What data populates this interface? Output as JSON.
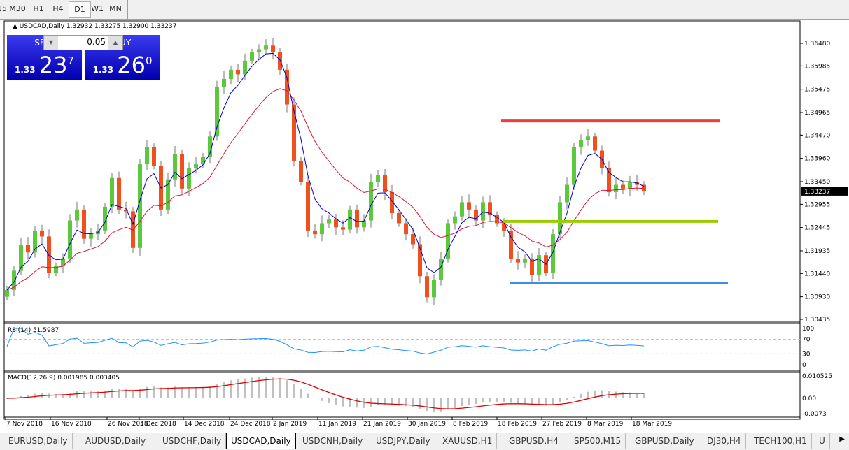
{
  "timeframes": [
    {
      "label": "15"
    },
    {
      "label": "M30"
    },
    {
      "label": "H1"
    },
    {
      "label": "H4"
    },
    {
      "label": "D1",
      "active": true
    },
    {
      "label": "W1"
    },
    {
      "label": "MN"
    }
  ],
  "chart": {
    "title": "USDCAD,Daily  1.32932 1.33275 1.32900 1.33237",
    "current_price": "1.33237"
  },
  "trade_panel": {
    "sell_label": "SELL",
    "buy_label": "BUY",
    "lot": "0.05",
    "sell_prefix": "1.33",
    "sell_big": "23",
    "sell_sup": "7",
    "buy_prefix": "1.33",
    "buy_big": "26",
    "buy_sup": "0"
  },
  "indicators": {
    "rsi_label": "RSI(14) 51.5987",
    "macd_label": "MACD(12,26,9) 0.001985 0.003405"
  },
  "tabs": [
    {
      "label": "EURUSD,Daily"
    },
    {
      "label": "AUDUSD,Daily"
    },
    {
      "label": "USDCHF,Daily"
    },
    {
      "label": "USDCAD,Daily",
      "active": true
    },
    {
      "label": "USDCNH,Daily"
    },
    {
      "label": "USDJPY,Daily"
    },
    {
      "label": "XAUUSD,H1"
    },
    {
      "label": "GBPUSD,H4"
    },
    {
      "label": "SP500,M15"
    },
    {
      "label": "GBPUSD,Daily"
    },
    {
      "label": "DJ30,H4"
    },
    {
      "label": "TECH100,H1"
    },
    {
      "label": "U"
    }
  ],
  "chart_data": {
    "type": "candlestick",
    "price_ticks": [
      "1.36480",
      "1.35985",
      "1.35475",
      "1.34965",
      "1.34470",
      "1.33960",
      "1.33450",
      "1.32955",
      "1.32445",
      "1.31935",
      "1.31440",
      "1.30930",
      "1.30435"
    ],
    "ylim": [
      1.30435,
      1.3648
    ],
    "date_ticks": [
      "7 Nov 2018",
      "16 Nov 2018",
      "26 Nov 2018",
      "5 Dec 2018",
      "14 Dec 2018",
      "24 Dec 2018",
      "2 Jan 2019",
      "11 Jan 2019",
      "21 Jan 2019",
      "30 Jan 2019",
      "8 Feb 2019",
      "18 Feb 2019",
      "27 Feb 2019",
      "8 Mar 2019",
      "18 Mar 2019"
    ],
    "closes": [
      1.3108,
      1.315,
      1.3207,
      1.319,
      1.3238,
      1.3225,
      1.3146,
      1.316,
      1.3177,
      1.326,
      1.3284,
      1.322,
      1.323,
      1.3238,
      1.329,
      1.3353,
      1.3284,
      1.328,
      1.32,
      1.3383,
      1.3421,
      1.338,
      1.3284,
      1.335,
      1.3406,
      1.333,
      1.3375,
      1.3383,
      1.34,
      1.3444,
      1.3552,
      1.357,
      1.359,
      1.358,
      1.361,
      1.3628,
      1.3635,
      1.3643,
      1.3628,
      1.359,
      1.3514,
      1.3391,
      1.3345,
      1.3238,
      1.323,
      1.3254,
      1.3262,
      1.3245,
      1.324,
      1.3284,
      1.3245,
      1.326,
      1.3345,
      1.336,
      1.3322,
      1.3276,
      1.3254,
      1.323,
      1.3208,
      1.3138,
      1.3092,
      1.313,
      1.3176,
      1.3254,
      1.3269,
      1.33,
      1.3284,
      1.326,
      1.33,
      1.3272,
      1.3254,
      1.3238,
      1.3176,
      1.3168,
      1.3176,
      1.314,
      1.3184,
      1.3146,
      1.323,
      1.33,
      1.3338,
      1.3421,
      1.3436,
      1.3444,
      1.3413,
      1.3375,
      1.3322,
      1.3338,
      1.333,
      1.3345,
      1.3338,
      1.33237
    ],
    "levels": [
      {
        "price": 1.3478,
        "color": "#f03c3c"
      },
      {
        "price": 1.3258,
        "color": "#9acd00"
      },
      {
        "price": 1.3123,
        "color": "#3c8ee0"
      }
    ],
    "bull_color": "#5cc83c",
    "bear_color": "#f0501e",
    "fast_ma_color": "#0000c8",
    "slow_ma_color": "#e0143c",
    "rsi": {
      "ticks": [
        "100",
        "70",
        "30",
        "0"
      ],
      "color": "#1e90ff"
    },
    "macd": {
      "ticks": [
        "0.010525",
        "0.00",
        "-0.0073"
      ],
      "hist_color": "#c0c0c0",
      "signal_color": "#e00000"
    }
  }
}
